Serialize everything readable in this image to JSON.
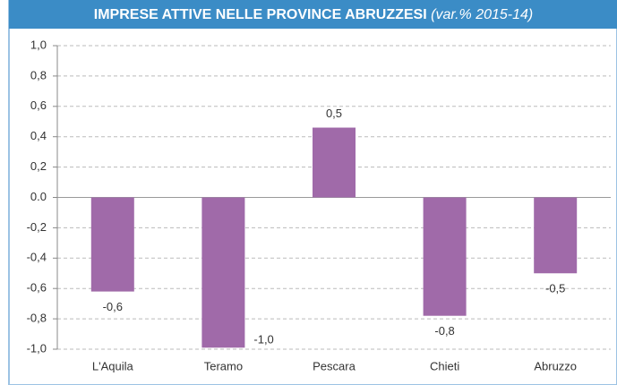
{
  "chart_data": {
    "type": "bar",
    "title": "IMPRESE ATTIVE NELLE PROVINCE ABRUZZESI",
    "subtitle": "(var.% 2015-14)",
    "categories": [
      "L'Aquila",
      "Teramo",
      "Pescara",
      "Chieti",
      "Abruzzo"
    ],
    "values": [
      -0.62,
      -0.99,
      0.46,
      -0.78,
      -0.5
    ],
    "value_labels": [
      "-0,6",
      "-1,0",
      "0,5",
      "-0,8",
      "-0,5"
    ],
    "color": "#a06aa9",
    "ylim": [
      -1.0,
      1.0
    ],
    "yticks": [
      {
        "value": -1.0,
        "label": "-1,0"
      },
      {
        "value": -0.8,
        "label": "-0,8"
      },
      {
        "value": -0.6,
        "label": "-0,6"
      },
      {
        "value": -0.4,
        "label": "-0,4"
      },
      {
        "value": -0.2,
        "label": "-0,2"
      },
      {
        "value": 0,
        "label": "0.0"
      },
      {
        "value": 0.2,
        "label": "0,2"
      },
      {
        "value": 0.4,
        "label": "0,4"
      },
      {
        "value": 0.6,
        "label": "0,6"
      },
      {
        "value": 0.8,
        "label": "0,8"
      },
      {
        "value": 1.0,
        "label": "1,0"
      }
    ],
    "grid": true
  }
}
